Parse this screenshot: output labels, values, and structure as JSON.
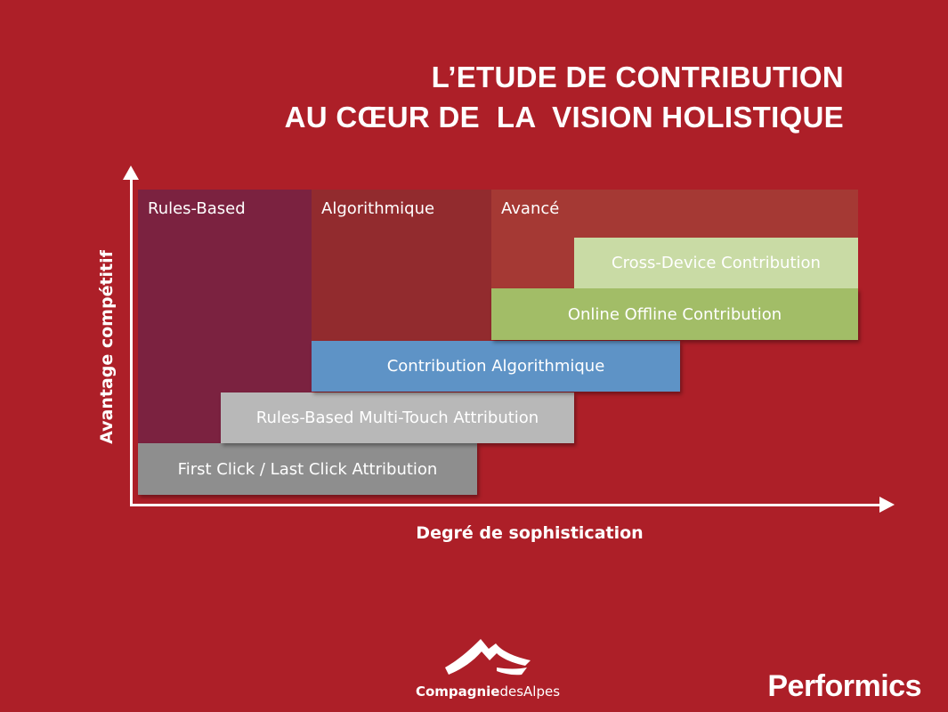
{
  "title": {
    "line1": "L’ETUDE DE CONTRIBUTION",
    "line2": "AU CŒUR DE  LA  VISION HOLISTIQUE"
  },
  "axes": {
    "y_label": "Avantage compétitif",
    "x_label": "Degré de sophistication"
  },
  "zones": [
    {
      "label": "Rules-Based",
      "color": "#7b2240"
    },
    {
      "label": "Algorithmique",
      "color": "#922b2e"
    },
    {
      "label": "Avancé",
      "color": "#a53934"
    }
  ],
  "bands": [
    {
      "label": "First Click / Last Click Attribution",
      "color": "#8e8e8e",
      "text_color": "#ffffff"
    },
    {
      "label": "Rules-Based Multi-Touch Attribution",
      "color": "#b8b8b8",
      "text_color": "#ffffff"
    },
    {
      "label": "Contribution Algorithmique",
      "color": "#5e93c6",
      "text_color": "#ffffff"
    },
    {
      "label": "Online Offline Contribution",
      "color": "#a2bd67",
      "text_color": "#ffffff"
    },
    {
      "label": "Cross-Device Contribution",
      "color": "#c9dba5",
      "text_color": "#ffffff"
    }
  ],
  "logos": {
    "cda_bold": "Compagnie",
    "cda_regular": "desAlpes",
    "performics": "Performics"
  },
  "colors": {
    "background": "#ad1f28",
    "foreground": "#ffffff"
  }
}
